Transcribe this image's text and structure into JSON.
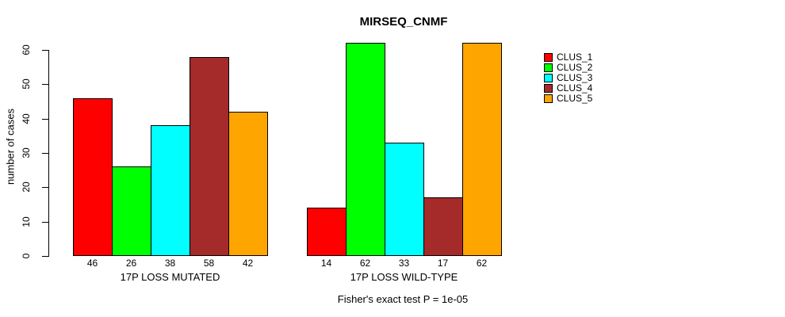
{
  "chart_data": {
    "type": "bar",
    "title": "MIRSEQ_CNMF",
    "ylabel": "number of cases",
    "ylim": [
      0,
      62
    ],
    "yticks": [
      0,
      10,
      20,
      30,
      40,
      50,
      60
    ],
    "grid": false,
    "legend_position": "right",
    "legend": [
      {
        "label": "CLUS_1",
        "color": "#FF0000"
      },
      {
        "label": "CLUS_2",
        "color": "#00FF00"
      },
      {
        "label": "CLUS_3",
        "color": "#00FFFF"
      },
      {
        "label": "CLUS_4",
        "color": "#A52A2A"
      },
      {
        "label": "CLUS_5",
        "color": "#FFA500"
      }
    ],
    "groups": [
      {
        "label": "17P LOSS MUTATED",
        "values": [
          46,
          26,
          38,
          58,
          42
        ]
      },
      {
        "label": "17P LOSS WILD-TYPE",
        "values": [
          14,
          62,
          33,
          17,
          62
        ]
      }
    ],
    "bar_value_labels_shown": true,
    "annotation": "Fisher's exact test P = 1e-05"
  }
}
